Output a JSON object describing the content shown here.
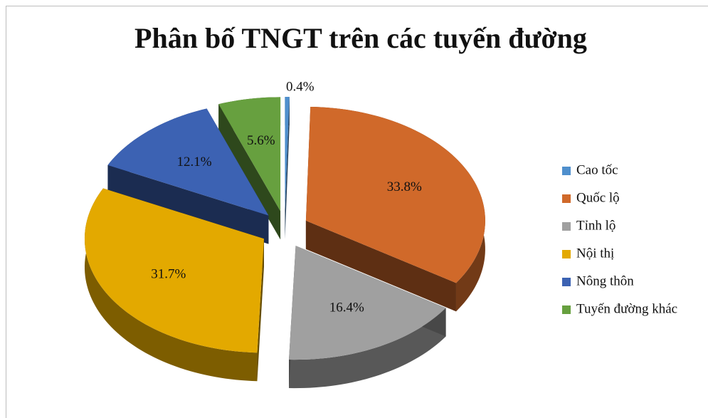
{
  "chart_data": {
    "type": "pie3d",
    "title": "Phân bố TNGT trên các tuyến đường",
    "categories": [
      "Cao tốc",
      "Quốc lộ",
      "Tỉnh lộ",
      "Nội thị",
      "Nông thôn",
      "Tuyến đường khác"
    ],
    "values": [
      0.4,
      33.8,
      16.4,
      31.7,
      12.1,
      5.6
    ],
    "value_labels": [
      "0.4%",
      "33.8%",
      "16.4%",
      "31.7%",
      "12.1%",
      "5.6%"
    ],
    "colors": [
      "#4f8fcd",
      "#d0692a",
      "#a0a0a0",
      "#e3a900",
      "#3c62b3",
      "#67a03f"
    ],
    "legend": "right"
  }
}
